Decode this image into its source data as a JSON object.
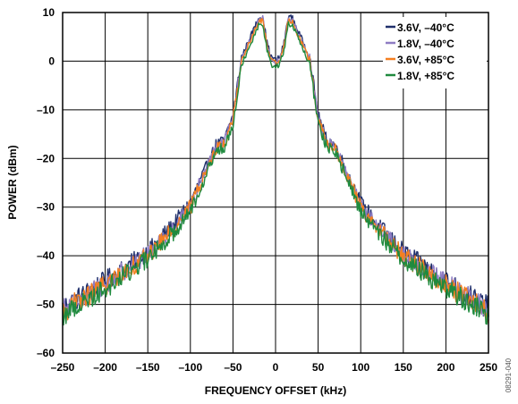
{
  "chart_data": {
    "type": "line",
    "xlabel": "FREQUENCY OFFSET (kHz)",
    "ylabel": "POWER (dBm)",
    "xlim": [
      -250,
      250
    ],
    "ylim": [
      -60,
      10
    ],
    "x_ticks": [
      "–250",
      "–200",
      "–150",
      "–100",
      "–50",
      "0",
      "50",
      "100",
      "150",
      "200",
      "250"
    ],
    "y_ticks": [
      "10",
      "0",
      "–10",
      "–20",
      "–30",
      "–40",
      "–50",
      "–60"
    ],
    "grid": true,
    "legend_position": "top-right",
    "figure_id": "08291-040",
    "envelope": {
      "x": [
        -250,
        -200,
        -150,
        -120,
        -100,
        -80,
        -70,
        -60,
        -50,
        -40,
        -30,
        -20,
        -15,
        -10,
        -5,
        0,
        5,
        10,
        15,
        20,
        30,
        40,
        50,
        60,
        70,
        80,
        100,
        120,
        150,
        200,
        250
      ],
      "y": [
        -51.5,
        -46,
        -40,
        -34.5,
        -30,
        -22,
        -18,
        -17,
        -12,
        0,
        4,
        8,
        8.5,
        3,
        0,
        -0.5,
        0,
        3,
        8.5,
        8,
        4,
        0,
        -12,
        -17,
        -18,
        -22,
        -30,
        -34.5,
        -40,
        -46,
        -51.5
      ]
    },
    "series": [
      {
        "name": "3.6V, –40°C",
        "color": "#1f2f6b",
        "offset": 0.8
      },
      {
        "name": "1.8V, –40°C",
        "color": "#8e7cc3",
        "offset": 0.3
      },
      {
        "name": "3.6V, +85°C",
        "color": "#f47f20",
        "offset": 0.0
      },
      {
        "name": "1.8V, +85°C",
        "color": "#1f8a3e",
        "offset": -0.7
      }
    ]
  }
}
